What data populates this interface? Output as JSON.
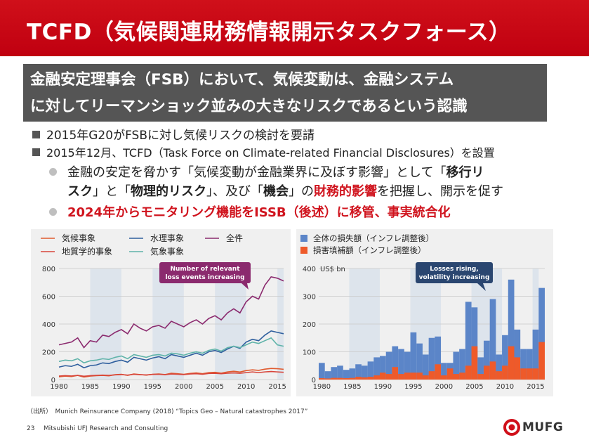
{
  "title": "TCFD（気候関連財務情報開示タスクフォース）",
  "banner": {
    "line1": "金融安定理事会（FSB）において、気候変動は、金融システム",
    "line2": "に対してリーマンショック並みの大きなリスクであるという認識"
  },
  "bullets": {
    "b1": "2015年G20がFSBに対し気候リスクの検討を要請",
    "b2": "2015年12月、TCFD（Task Force on Climate-related Financial Disclosures）を設置",
    "sub1": {
      "line1_a": "金融の安定を脅かす「気候変動が金融業界に及ぼす影響」として「",
      "line1_b": "移行リ",
      "line2_a": "スク",
      "line2_b": "」と「",
      "line2_c": "物理的リスク",
      "line2_d": "」、及び「",
      "line2_e": "機会",
      "line2_f": "」の",
      "line2_g": "財務的影響",
      "line2_h": "を把握し、開示を促す"
    },
    "sub2": "2024年からモニタリング機能をISSB（後述）に移管、事実統合化"
  },
  "chart_data": [
    {
      "type": "line",
      "legend": [
        "気候事象",
        "水理事象",
        "全件",
        "地質学的事象",
        "気象事象"
      ],
      "colors": {
        "climate": "#e05a2e",
        "hydro": "#2f5f9e",
        "all": "#8b2a6e",
        "geo": "#d8453a",
        "meteo": "#5fb3a9"
      },
      "annotation": [
        "Number of relevant",
        "loss events increasing"
      ],
      "x_ticks": [
        "1980",
        "1985",
        "1990",
        "1995",
        "2000",
        "2005",
        "2010",
        "2015"
      ],
      "y_ticks": [
        "0",
        "200",
        "400",
        "600",
        "800"
      ],
      "ylim": [
        0,
        800
      ],
      "xlim": [
        1980,
        2016
      ],
      "x": [
        1980,
        1981,
        1982,
        1983,
        1984,
        1985,
        1986,
        1987,
        1988,
        1989,
        1990,
        1991,
        1992,
        1993,
        1994,
        1995,
        1996,
        1997,
        1998,
        1999,
        2000,
        2001,
        2002,
        2003,
        2004,
        2005,
        2006,
        2007,
        2008,
        2009,
        2010,
        2011,
        2012,
        2013,
        2014,
        2015,
        2016
      ],
      "series": [
        {
          "key": "all",
          "values": [
            250,
            260,
            270,
            300,
            230,
            280,
            270,
            320,
            310,
            340,
            360,
            330,
            400,
            370,
            350,
            380,
            390,
            370,
            420,
            400,
            380,
            410,
            430,
            400,
            440,
            460,
            430,
            480,
            510,
            480,
            560,
            600,
            580,
            680,
            740,
            730,
            710
          ]
        },
        {
          "key": "hydro",
          "values": [
            90,
            100,
            95,
            110,
            85,
            100,
            105,
            120,
            115,
            130,
            140,
            125,
            160,
            150,
            140,
            155,
            165,
            150,
            180,
            170,
            160,
            175,
            190,
            175,
            200,
            210,
            195,
            220,
            240,
            225,
            270,
            290,
            280,
            320,
            350,
            340,
            330
          ]
        },
        {
          "key": "meteo",
          "values": [
            130,
            140,
            135,
            150,
            120,
            135,
            140,
            150,
            145,
            160,
            170,
            150,
            180,
            170,
            160,
            175,
            180,
            170,
            190,
            185,
            175,
            190,
            200,
            190,
            210,
            220,
            205,
            230,
            240,
            230,
            250,
            270,
            260,
            280,
            300,
            250,
            240
          ]
        },
        {
          "key": "climate",
          "values": [
            20,
            25,
            22,
            30,
            18,
            25,
            28,
            30,
            27,
            35,
            38,
            30,
            40,
            36,
            32,
            38,
            40,
            36,
            45,
            42,
            38,
            44,
            48,
            42,
            50,
            52,
            46,
            55,
            60,
            54,
            65,
            70,
            66,
            75,
            80,
            78,
            74
          ]
        },
        {
          "key": "geo",
          "values": [
            25,
            28,
            26,
            30,
            24,
            28,
            30,
            32,
            30,
            34,
            36,
            32,
            38,
            35,
            33,
            37,
            38,
            35,
            40,
            38,
            36,
            40,
            42,
            38,
            44,
            45,
            42,
            46,
            48,
            45,
            50,
            55,
            50,
            55,
            58,
            55,
            52
          ]
        }
      ]
    },
    {
      "type": "bar",
      "legend": [
        "全体の損失額（インフレ調整後）",
        "損害填補額（インフレ調整後）"
      ],
      "colors": {
        "overall": "#5b85c8",
        "insured": "#ee5a2a"
      },
      "annotation": [
        "Losses rising,",
        "volatility increasing"
      ],
      "unit_label": "US$ bn",
      "x_ticks": [
        "1980",
        "1985",
        "1990",
        "1995",
        "2000",
        "2005",
        "2010",
        "2015"
      ],
      "y_ticks": [
        "0",
        "100",
        "200",
        "300",
        "400"
      ],
      "ylim": [
        0,
        400
      ],
      "xlim": [
        1980,
        2016
      ],
      "categories": [
        1980,
        1981,
        1982,
        1983,
        1984,
        1985,
        1986,
        1987,
        1988,
        1989,
        1990,
        1991,
        1992,
        1993,
        1994,
        1995,
        1996,
        1997,
        1998,
        1999,
        2000,
        2001,
        2002,
        2003,
        2004,
        2005,
        2006,
        2007,
        2008,
        2009,
        2010,
        2011,
        2012,
        2013,
        2014,
        2015,
        2016
      ],
      "series": [
        {
          "key": "overall",
          "values": [
            60,
            30,
            45,
            50,
            35,
            40,
            55,
            50,
            65,
            80,
            85,
            100,
            120,
            110,
            100,
            170,
            130,
            90,
            150,
            155,
            60,
            60,
            100,
            110,
            280,
            260,
            80,
            140,
            290,
            90,
            160,
            360,
            180,
            110,
            110,
            180,
            330
          ]
        },
        {
          "key": "insured",
          "values": [
            5,
            4,
            6,
            6,
            5,
            6,
            10,
            8,
            10,
            15,
            25,
            20,
            45,
            20,
            25,
            25,
            25,
            15,
            30,
            55,
            15,
            40,
            20,
            25,
            50,
            120,
            20,
            50,
            65,
            30,
            50,
            120,
            80,
            40,
            40,
            40,
            135
          ]
        }
      ]
    }
  ],
  "source": "（出所）　Munich Reinsurance Company (2018) “Topics Geo – Natural catastrophes 2017”",
  "footer": {
    "page": "23",
    "company": "Mitsubishi UFJ Research and Consulting",
    "logo_text": "MUFG"
  }
}
